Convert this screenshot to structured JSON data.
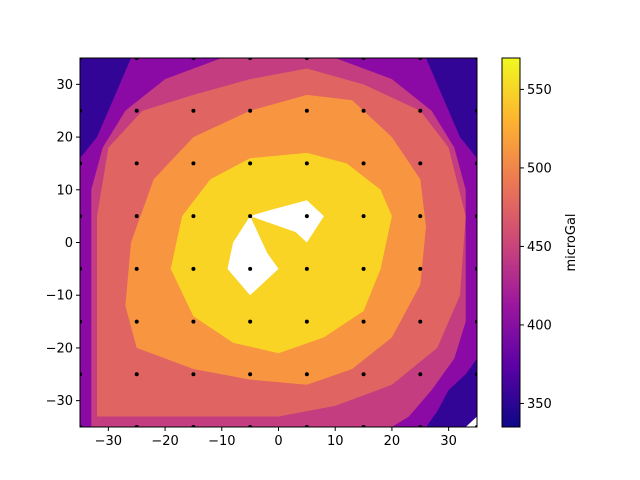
{
  "chart_data": {
    "type": "contour",
    "xlim": [
      -35,
      35
    ],
    "ylim": [
      -35,
      35
    ],
    "x_ticks": [
      -30,
      -20,
      -10,
      0,
      10,
      20,
      30
    ],
    "y_ticks": [
      -30,
      -20,
      -10,
      0,
      10,
      20,
      30
    ],
    "colorbar": {
      "label": "microGal",
      "range": [
        335,
        570
      ],
      "ticks": [
        350,
        400,
        450,
        500,
        550
      ],
      "levels": [
        335,
        390,
        425,
        475,
        520,
        570
      ],
      "level_colors": [
        "#330597",
        "#8b0aa5",
        "#c33d80",
        "#e06461",
        "#f89540",
        "#f9d424"
      ],
      "colormap_stops": [
        "#0d0887",
        "#5c01a6",
        "#9c179e",
        "#cc4778",
        "#ed7953",
        "#fdb42f",
        "#f0f921"
      ]
    },
    "points": {
      "x": [
        -35,
        -25,
        -15,
        -5,
        5,
        15,
        25,
        35
      ],
      "y": [
        -35,
        -25,
        -15,
        -5,
        5,
        15,
        25,
        35
      ]
    },
    "bands": [
      {
        "level": 1,
        "poly": [
          [
            -35,
            -35
          ],
          [
            -35,
            16
          ],
          [
            -32,
            20
          ],
          [
            -30,
            25
          ],
          [
            -28,
            30
          ],
          [
            -26,
            35
          ],
          [
            26,
            35
          ],
          [
            28,
            30
          ],
          [
            30,
            25
          ],
          [
            32,
            20
          ],
          [
            35,
            16
          ],
          [
            35,
            -22
          ],
          [
            33,
            -25
          ],
          [
            30,
            -28
          ],
          [
            28,
            -32
          ],
          [
            26,
            -35
          ]
        ]
      },
      {
        "level": 2,
        "poly": [
          [
            -33,
            -35
          ],
          [
            -33,
            10
          ],
          [
            -31,
            18
          ],
          [
            -27,
            25
          ],
          [
            -20,
            31
          ],
          [
            -10,
            35
          ],
          [
            10,
            35
          ],
          [
            20,
            31
          ],
          [
            27,
            25
          ],
          [
            31,
            18
          ],
          [
            33,
            10
          ],
          [
            33,
            -15
          ],
          [
            31,
            -22
          ],
          [
            27,
            -28
          ],
          [
            23,
            -33
          ],
          [
            20,
            -35
          ]
        ]
      },
      {
        "level": 3,
        "poly": [
          [
            -32,
            -33
          ],
          [
            -32,
            5
          ],
          [
            -30,
            18
          ],
          [
            -24,
            25
          ],
          [
            -15,
            28
          ],
          [
            -5,
            31
          ],
          [
            5,
            33
          ],
          [
            15,
            30
          ],
          [
            25,
            25
          ],
          [
            30,
            18
          ],
          [
            33,
            5
          ],
          [
            32,
            -10
          ],
          [
            28,
            -20
          ],
          [
            20,
            -27
          ],
          [
            10,
            -31
          ],
          [
            0,
            -33
          ],
          [
            -10,
            -33
          ],
          [
            -20,
            -33
          ]
        ]
      },
      {
        "level": 4,
        "poly": [
          [
            -25,
            -20
          ],
          [
            -27,
            -12
          ],
          [
            -26,
            0
          ],
          [
            -22,
            12
          ],
          [
            -15,
            20
          ],
          [
            -5,
            25
          ],
          [
            5,
            28
          ],
          [
            13,
            27
          ],
          [
            20,
            20
          ],
          [
            25,
            12
          ],
          [
            26,
            3
          ],
          [
            25,
            -8
          ],
          [
            20,
            -18
          ],
          [
            13,
            -24
          ],
          [
            5,
            -27
          ],
          [
            -5,
            -26
          ],
          [
            -15,
            -24
          ]
        ]
      },
      {
        "level": 5,
        "poly": [
          [
            -19,
            -5
          ],
          [
            -17,
            5
          ],
          [
            -12,
            12
          ],
          [
            -5,
            16
          ],
          [
            5,
            17
          ],
          [
            12,
            15
          ],
          [
            18,
            10
          ],
          [
            20,
            5
          ],
          [
            18,
            -5
          ],
          [
            15,
            -13
          ],
          [
            8,
            -18
          ],
          [
            0,
            -21
          ],
          [
            -8,
            -19
          ],
          [
            -15,
            -14
          ]
        ]
      }
    ],
    "blank_regions": [
      [
        [
          -5,
          5
        ],
        [
          -2,
          6
        ],
        [
          5,
          8
        ],
        [
          8,
          5
        ],
        [
          5,
          0
        ],
        [
          3,
          2
        ]
      ],
      [
        [
          -5,
          5
        ],
        [
          -8,
          0
        ],
        [
          -9,
          -5
        ],
        [
          -5,
          -10
        ],
        [
          0,
          -5
        ],
        [
          -2,
          -2
        ]
      ]
    ],
    "bottom_right_notch": [
      [
        35,
        -35
      ],
      [
        35,
        -33
      ],
      [
        33,
        -35
      ]
    ]
  }
}
